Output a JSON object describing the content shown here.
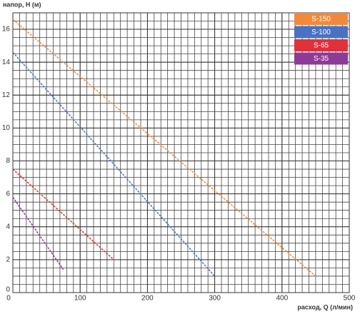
{
  "chart_data": {
    "type": "line",
    "y_label": "напор, H (м)",
    "x_label": "расход, Q (л/мин)",
    "xlim": [
      0,
      500
    ],
    "xticks": [
      0,
      100,
      200,
      300,
      400,
      500
    ],
    "ylim": [
      0,
      17
    ],
    "yticks": [
      0,
      2,
      4,
      6,
      8,
      10,
      12,
      14,
      16
    ],
    "grid": true,
    "legend": "top-right",
    "series": [
      {
        "name": "S-150",
        "color": "#f08a3a",
        "x": [
          0,
          450
        ],
        "values": [
          16.6,
          1.0
        ]
      },
      {
        "name": "S-100",
        "color": "#4a72c4",
        "x": [
          0,
          300
        ],
        "values": [
          14.6,
          1.0
        ]
      },
      {
        "name": "S-65",
        "color": "#e0303a",
        "x": [
          0,
          150
        ],
        "values": [
          7.5,
          2.0
        ]
      },
      {
        "name": "S-35",
        "color": "#8e3a96",
        "x": [
          0,
          75
        ],
        "values": [
          5.8,
          1.4
        ]
      }
    ]
  }
}
